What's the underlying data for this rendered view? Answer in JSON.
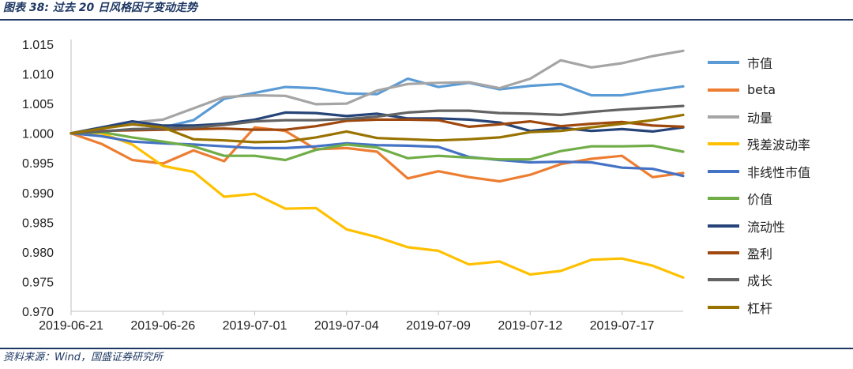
{
  "caption": "图表 38: 过去 20 日风格因子变动走势",
  "source": "资料来源：Wind，国盛证券研究所",
  "chart_data": {
    "type": "line",
    "title": "",
    "xlabel": "",
    "ylabel": "",
    "ylim": [
      0.97,
      1.015
    ],
    "yticks": [
      "0.970",
      "0.975",
      "0.980",
      "0.985",
      "0.990",
      "0.995",
      "1.000",
      "1.005",
      "1.010",
      "1.015"
    ],
    "x": [
      "2019-06-21",
      "2019-06-24",
      "2019-06-25",
      "2019-06-26",
      "2019-06-27",
      "2019-06-28",
      "2019-07-01",
      "2019-07-02",
      "2019-07-03",
      "2019-07-04",
      "2019-07-05",
      "2019-07-08",
      "2019-07-09",
      "2019-07-10",
      "2019-07-11",
      "2019-07-12",
      "2019-07-15",
      "2019-07-16",
      "2019-07-17",
      "2019-07-18",
      "2019-07-19"
    ],
    "xtick_labels": [
      "2019-06-21",
      "2019-06-26",
      "2019-07-01",
      "2019-07-04",
      "2019-07-09",
      "2019-07-12",
      "2019-07-17"
    ],
    "legend_position": "right",
    "grid": false,
    "series": [
      {
        "name": "市值",
        "color": "#5b9bd5",
        "values": [
          1.0,
          1.001,
          1.0015,
          1.001,
          1.0022,
          1.0058,
          1.0068,
          1.0078,
          1.0076,
          1.0067,
          1.0066,
          1.0092,
          1.0078,
          1.0085,
          1.0074,
          1.008,
          1.0083,
          1.0064,
          1.0064,
          1.0072,
          1.0079
        ]
      },
      {
        "name": "beta",
        "color": "#ed7d31",
        "values": [
          1.0,
          0.9982,
          0.9955,
          0.9949,
          0.9971,
          0.9953,
          1.001,
          1.0004,
          0.9973,
          0.9975,
          0.9969,
          0.9924,
          0.9936,
          0.9926,
          0.9919,
          0.993,
          0.9948,
          0.9957,
          0.9962,
          0.9926,
          0.9933
        ]
      },
      {
        "name": "动量",
        "color": "#a5a5a5",
        "values": [
          1.0,
          1.001,
          1.0018,
          1.0023,
          1.0042,
          1.0061,
          1.0064,
          1.0063,
          1.0049,
          1.005,
          1.0072,
          1.0083,
          1.0085,
          1.0086,
          1.0076,
          1.0092,
          1.0123,
          1.0111,
          1.0118,
          1.013,
          1.0139
        ]
      },
      {
        "name": "残差波动率",
        "color": "#ffc000",
        "values": [
          1.0,
          1.0,
          0.9981,
          0.9945,
          0.9935,
          0.9893,
          0.9898,
          0.9873,
          0.9874,
          0.9838,
          0.9825,
          0.9808,
          0.9802,
          0.9779,
          0.9784,
          0.9762,
          0.9768,
          0.9787,
          0.9789,
          0.9777,
          0.9757
        ]
      },
      {
        "name": "非线性市值",
        "color": "#4472c4",
        "values": [
          1.0,
          0.9995,
          0.9986,
          0.9983,
          0.9981,
          0.9978,
          0.9975,
          0.9975,
          0.9978,
          0.9983,
          0.998,
          0.9979,
          0.9977,
          0.996,
          0.9955,
          0.9951,
          0.9952,
          0.9951,
          0.9942,
          0.994,
          0.9928
        ]
      },
      {
        "name": "价值",
        "color": "#70ad47",
        "values": [
          1.0,
          1.0002,
          0.9993,
          0.9986,
          0.9978,
          0.9962,
          0.9962,
          0.9955,
          0.9972,
          0.9981,
          0.9976,
          0.9958,
          0.9962,
          0.9959,
          0.9956,
          0.9956,
          0.997,
          0.9978,
          0.9978,
          0.9979,
          0.9969
        ]
      },
      {
        "name": "流动性",
        "color": "#264478",
        "values": [
          1.0,
          1.001,
          1.002,
          1.0013,
          1.0013,
          1.0016,
          1.0023,
          1.0035,
          1.0034,
          1.0029,
          1.0033,
          1.0025,
          1.0025,
          1.0023,
          1.0018,
          1.0004,
          1.0009,
          1.0004,
          1.0007,
          1.0003,
          1.001
        ]
      },
      {
        "name": "盈利",
        "color": "#9e480e",
        "values": [
          1.0,
          1.0004,
          1.0005,
          1.0006,
          1.0007,
          1.0008,
          1.0006,
          1.0006,
          1.0012,
          1.0021,
          1.0023,
          1.0023,
          1.0022,
          1.0011,
          1.0015,
          1.002,
          1.0012,
          1.0016,
          1.0019,
          1.0013,
          1.0011
        ]
      },
      {
        "name": "成长",
        "color": "#636363",
        "values": [
          1.0,
          1.0003,
          1.0007,
          1.0008,
          1.001,
          1.0014,
          1.002,
          1.0022,
          1.0022,
          1.0024,
          1.0028,
          1.0035,
          1.0038,
          1.0038,
          1.0034,
          1.0033,
          1.0031,
          1.0036,
          1.004,
          1.0043,
          1.0046
        ]
      },
      {
        "name": "杠杆",
        "color": "#997300",
        "values": [
          1.0,
          1.0008,
          1.0015,
          1.001,
          0.999,
          0.9988,
          0.9985,
          0.9986,
          0.9993,
          1.0003,
          0.9992,
          0.999,
          0.9988,
          0.999,
          0.9993,
          1.0002,
          1.0004,
          1.001,
          1.0016,
          1.0022,
          1.0031
        ]
      }
    ]
  }
}
